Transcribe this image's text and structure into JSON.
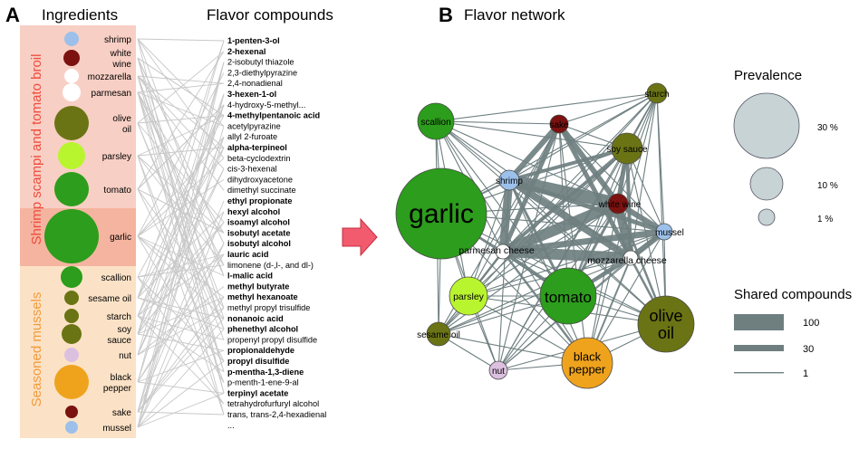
{
  "panel_a": {
    "letter": "A",
    "ingredients_title": "Ingredients",
    "compounds_title": "Flavor compounds",
    "group1_label": "Shrimp scampi and tomato broil",
    "group2_label": "Seasoned mussels",
    "group1_color": "#f8cfc4",
    "group2_color": "#fbe2c6",
    "overlap_color": "#f4b4a0",
    "ingredients": [
      {
        "label": [
          "shrimp"
        ],
        "color": "#9cc0ea",
        "prevalence": 1,
        "group": 1
      },
      {
        "label": [
          "white",
          "wine"
        ],
        "color": "#7b1210",
        "prevalence": 1,
        "group": 1
      },
      {
        "label": [
          "mozzarella"
        ],
        "color": "#ffffff",
        "prevalence": 1,
        "group": 1
      },
      {
        "label": [
          "parmesan"
        ],
        "color": "#ffffff",
        "prevalence": 2,
        "group": 1
      },
      {
        "label": [
          "olive",
          "oil"
        ],
        "color": "#6b7414",
        "prevalence": 9,
        "group": 1
      },
      {
        "label": [
          "parsley"
        ],
        "color": "#b9f52e",
        "prevalence": 4,
        "group": 1
      },
      {
        "label": [
          "tomato"
        ],
        "color": "#2c9d1c",
        "prevalence": 9,
        "group": 1
      },
      {
        "label": [
          "garlic"
        ],
        "color": "#2c9d1c",
        "prevalence": 30,
        "group": 3
      },
      {
        "label": [
          "scallion"
        ],
        "color": "#2c9d1c",
        "prevalence": 3,
        "group": 2
      },
      {
        "label": [
          "sesame oil"
        ],
        "color": "#6b7414",
        "prevalence": 1.5,
        "group": 2
      },
      {
        "label": [
          "starch"
        ],
        "color": "#6b7414",
        "prevalence": 1.5,
        "group": 2
      },
      {
        "label": [
          "soy",
          "sauce"
        ],
        "color": "#6b7414",
        "prevalence": 2,
        "group": 2
      },
      {
        "label": [
          "nut"
        ],
        "color": "#dcc0e0",
        "prevalence": 1,
        "group": 2
      },
      {
        "label": [
          "black",
          "pepper"
        ],
        "color": "#efa31d",
        "prevalence": 8,
        "group": 2
      },
      {
        "label": [
          "sake"
        ],
        "color": "#7b1210",
        "prevalence": 0.8,
        "group": 2
      },
      {
        "label": [
          "mussel"
        ],
        "color": "#9cc0ea",
        "prevalence": 0.8,
        "group": 2
      }
    ],
    "compounds": [
      {
        "name": "1-penten-3-ol",
        "bold": true
      },
      {
        "name": "2-hexenal",
        "bold": true
      },
      {
        "name": "2-isobutyl thiazole",
        "bold": false
      },
      {
        "name": "2,3-diethylpyrazine",
        "bold": false
      },
      {
        "name": "2,4-nonadienal",
        "bold": false
      },
      {
        "name": "3-hexen-1-ol",
        "bold": true
      },
      {
        "name": "4-hydroxy-5-methyl...",
        "bold": false
      },
      {
        "name": "4-methylpentanoic acid",
        "bold": true
      },
      {
        "name": "acetylpyrazine",
        "bold": false
      },
      {
        "name": "allyl 2-furoate",
        "bold": false
      },
      {
        "name": "alpha-terpineol",
        "bold": true
      },
      {
        "name": "beta-cyclodextrin",
        "bold": false
      },
      {
        "name": "cis-3-hexenal",
        "bold": false
      },
      {
        "name": "dihydroxyacetone",
        "bold": false
      },
      {
        "name": "dimethyl succinate",
        "bold": false
      },
      {
        "name": "ethyl propionate",
        "bold": true
      },
      {
        "name": "hexyl alcohol",
        "bold": true
      },
      {
        "name": "isoamyl alcohol",
        "bold": true
      },
      {
        "name": "isobutyl acetate",
        "bold": true
      },
      {
        "name": "isobutyl alcohol",
        "bold": true
      },
      {
        "name": "lauric acid",
        "bold": true
      },
      {
        "name": "limonene (d-,l-, and dl-)",
        "bold": false
      },
      {
        "name": "l-malic acid",
        "bold": true
      },
      {
        "name": "methyl butyrate",
        "bold": true
      },
      {
        "name": "methyl hexanoate",
        "bold": true
      },
      {
        "name": "methyl propyl trisulfide",
        "bold": false
      },
      {
        "name": "nonanoic acid",
        "bold": true
      },
      {
        "name": "phenethyl alcohol",
        "bold": true
      },
      {
        "name": "propenyl propyl disulfide",
        "bold": false
      },
      {
        "name": "propionaldehyde",
        "bold": true
      },
      {
        "name": "propyl disulfide",
        "bold": true
      },
      {
        "name": "p-mentha-1,3-diene",
        "bold": true
      },
      {
        "name": "p-menth-1-ene-9-al",
        "bold": false
      },
      {
        "name": "terpinyl acetate",
        "bold": true
      },
      {
        "name": "tetrahydrofurfuryl alcohol",
        "bold": false
      },
      {
        "name": "trans, trans-2,4-hexadienal",
        "bold": false
      },
      {
        "name": "...",
        "bold": false
      }
    ]
  },
  "arrow_color": "#f25a6e",
  "panel_b": {
    "letter": "B",
    "title": "Flavor network",
    "nodes": [
      {
        "id": "garlic",
        "label": "garlic",
        "color": "#2c9d1c",
        "prevalence": 30,
        "label_color": "#000000"
      },
      {
        "id": "scallion",
        "label": "scallion",
        "color": "#2c9d1c",
        "prevalence": 4,
        "label_color": "#000000"
      },
      {
        "id": "sake",
        "label": "sake",
        "color": "#7b1210",
        "prevalence": 1,
        "label_color": "#000000"
      },
      {
        "id": "starch",
        "label": "starch",
        "color": "#6b7414",
        "prevalence": 1,
        "label_color": "#000000"
      },
      {
        "id": "soy_sauce",
        "label": "soy sauce",
        "color": "#6b7414",
        "prevalence": 3,
        "label_color": "#000000"
      },
      {
        "id": "shrimp",
        "label": "shrimp",
        "color": "#9cc0ea",
        "prevalence": 1.5,
        "label_color": "#000000"
      },
      {
        "id": "white_wine",
        "label": "white wine",
        "color": "#7b1210",
        "prevalence": 1.5,
        "label_color": "#000000"
      },
      {
        "id": "mussel",
        "label": "mussel",
        "color": "#9cc0ea",
        "prevalence": 1,
        "label_color": "#000000"
      },
      {
        "id": "parmesan",
        "label": "parmesan cheese",
        "color": "#ffffff",
        "prevalence": 1,
        "label_color": "#000000"
      },
      {
        "id": "mozzarella",
        "label": "mozzarella cheese",
        "color": "#ffffff",
        "prevalence": 1,
        "label_color": "#000000"
      },
      {
        "id": "parsley",
        "label": "parsley",
        "color": "#b9f52e",
        "prevalence": 4,
        "label_color": "#000000"
      },
      {
        "id": "tomato",
        "label": "tomato",
        "color": "#2c9d1c",
        "prevalence": 12,
        "label_color": "#000000"
      },
      {
        "id": "olive_oil",
        "label": "olive oil",
        "color": "#6b7414",
        "prevalence": 12,
        "label_color": "#000000"
      },
      {
        "id": "sesame_oil",
        "label": "sesame oil",
        "color": "#6b7414",
        "prevalence": 2,
        "label_color": "#000000"
      },
      {
        "id": "nut",
        "label": "nut",
        "color": "#dcc0e0",
        "prevalence": 1,
        "label_color": "#000000"
      },
      {
        "id": "black_pepper",
        "label": "black pepper",
        "color": "#efa31d",
        "prevalence": 10,
        "label_color": "#000000"
      }
    ],
    "legend": {
      "prevalence_title": "Prevalence",
      "prevalence_items": [
        {
          "label": "30 %",
          "value": 30
        },
        {
          "label": "10 %",
          "value": 10
        },
        {
          "label": "1 %",
          "value": 1
        }
      ],
      "shared_title": "Shared compounds",
      "shared_items": [
        {
          "label": "100",
          "value": 100
        },
        {
          "label": "30",
          "value": 30
        },
        {
          "label": "1",
          "value": 1
        }
      ]
    }
  }
}
